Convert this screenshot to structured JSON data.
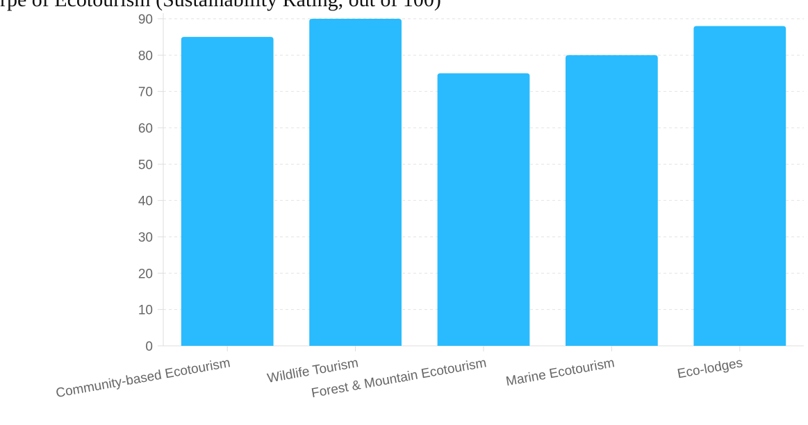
{
  "header": {
    "title_fragment": "rpe of Ecotourism (Sustainability Rating, out of 100)"
  },
  "chart_data": {
    "type": "bar",
    "categories": [
      "Community-based Ecotourism",
      "Wildlife Tourism",
      "Forest & Mountain Ecotourism",
      "Marine Ecotourism",
      "Eco-lodges"
    ],
    "values": [
      85,
      90,
      75,
      80,
      88
    ],
    "xlabel": "",
    "ylabel": "",
    "ylim": [
      0,
      90
    ],
    "yticks": [
      0,
      10,
      20,
      30,
      40,
      50,
      60,
      70,
      80,
      90
    ],
    "grid": true,
    "legend": "none",
    "bar_color": "#29BBFD",
    "grid_color": "#E2E2E2",
    "axis_color": "#DDDDDD",
    "label_color": "#666666"
  }
}
